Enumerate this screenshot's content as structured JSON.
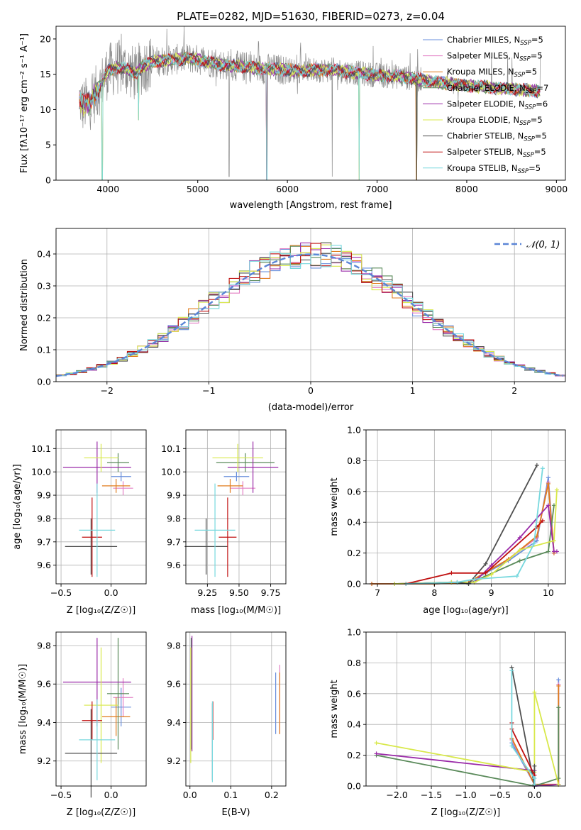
{
  "colors": {
    "Chabrier MILES": "#6a8fdc",
    "Salpeter MILES": "#e37fc4",
    "Kroupa MILES": "#e07b1c",
    "Chabrier ELODIE": "#5a8a5a",
    "Salpeter ELODIE": "#9a2aa8",
    "Kroupa ELODIE": "#d8e84a",
    "Chabrier STELIB": "#4f4f4f",
    "Salpeter STELIB": "#c01010",
    "Kroupa STELIB": "#78d8de",
    "data": "#8a8a8a",
    "gaussian": "#5b85d6",
    "grid": "#b0b0b0"
  },
  "chart_data": [
    {
      "id": "spectrum",
      "type": "line",
      "title": "PLATE=0282, MJD=51630, FIBERID=0273, z=0.04",
      "xlabel": "wavelength [Angstrom, rest frame]",
      "ylabel": "Flux [fλ10⁻¹⁷ erg cm⁻² s⁻¹ A⁻¹]",
      "xlim": [
        3420,
        9100
      ],
      "ylim": [
        0,
        21.8
      ],
      "xticks": [
        4000,
        5000,
        6000,
        7000,
        8000,
        9000
      ],
      "yticks": [
        0,
        5,
        10,
        15,
        20
      ],
      "grid": false,
      "legend_position": "top-right",
      "legend": [
        {
          "model": "Chabrier MILES",
          "label": "Chabrier MILES, N",
          "sub": "SSP",
          "eq": "=5"
        },
        {
          "model": "Salpeter MILES",
          "label": "Salpeter MILES, N",
          "sub": "SSP",
          "eq": "=5"
        },
        {
          "model": "Kroupa MILES",
          "label": "Kroupa MILES, N",
          "sub": "SSP",
          "eq": "=5"
        },
        {
          "model": "Chabrier ELODIE",
          "label": "Chabrier ELODIE, N",
          "sub": "SSP",
          "eq": "=7"
        },
        {
          "model": "Salpeter ELODIE",
          "label": "Salpeter ELODIE, N",
          "sub": "SSP",
          "eq": "=6"
        },
        {
          "model": "Kroupa ELODIE",
          "label": "Kroupa ELODIE, N",
          "sub": "SSP",
          "eq": "=5"
        },
        {
          "model": "Chabrier STELIB",
          "label": "Chabrier STELIB, N",
          "sub": "SSP",
          "eq": "=5"
        },
        {
          "model": "Salpeter STELIB",
          "label": "Salpeter STELIB, N",
          "sub": "SSP",
          "eq": "=5"
        },
        {
          "model": "Kroupa STELIB",
          "label": "Kroupa STELIB, N",
          "sub": "SSP",
          "eq": "=5"
        }
      ],
      "continuum": {
        "x": [
          3680,
          3720,
          3800,
          3900,
          4000,
          4100,
          4200,
          4300,
          4400,
          4500,
          4700,
          4900,
          5100,
          5300,
          5500,
          5700,
          5900,
          6100,
          6300,
          6500,
          6700,
          6900,
          7100,
          7300,
          7450,
          7600,
          7800,
          8000,
          8200,
          8400,
          8600,
          8820
        ],
        "y": [
          11.5,
          10.5,
          11.0,
          13.0,
          15.5,
          16.0,
          15.8,
          15.0,
          16.2,
          16.8,
          17.0,
          17.3,
          16.8,
          16.3,
          16.1,
          15.8,
          15.7,
          15.5,
          15.6,
          15.6,
          15.3,
          15.0,
          14.8,
          14.6,
          14.3,
          14.0,
          13.7,
          13.4,
          13.2,
          13.0,
          12.8,
          12.6
        ]
      },
      "data_end_x": 8820,
      "model_sharp_features": [
        {
          "x": 3935,
          "y": 0
        },
        {
          "x": 4340,
          "y": 8.5
        },
        {
          "x": 5770,
          "y": 0
        },
        {
          "x": 6800,
          "y": 0
        },
        {
          "x": 7440,
          "y": 0
        }
      ]
    },
    {
      "id": "residuals",
      "type": "step-histogram",
      "xlabel": "(data-model)/error",
      "ylabel": "Normed distribution",
      "xlim": [
        -2.5,
        2.5
      ],
      "ylim": [
        0,
        0.48
      ],
      "xticks": [
        -2,
        -1,
        0,
        1,
        2
      ],
      "yticks": [
        0.0,
        0.1,
        0.2,
        0.3,
        0.4
      ],
      "grid": true,
      "legend": [
        {
          "label": "𝒩(0, 1)"
        }
      ],
      "bin_width": 0.1,
      "gaussian": {
        "mu": 0,
        "sigma": 1
      }
    },
    {
      "id": "z-vs-age",
      "type": "errorbar",
      "xlabel": "Z [log₁₀(Z/Z☉)]",
      "ylabel": "age  [log₁₀(age/yr)]",
      "xlim": [
        -0.55,
        0.35
      ],
      "ylim": [
        9.52,
        10.18
      ],
      "xticks": [
        -0.5,
        0.0
      ],
      "yticks": [
        9.6,
        9.7,
        9.8,
        9.9,
        10.0,
        10.1
      ],
      "grid": true,
      "points": [
        {
          "model": "Chabrier MILES",
          "x": 0.1,
          "xerr": 0.1,
          "y": 9.98,
          "yerr": 0.02
        },
        {
          "model": "Salpeter MILES",
          "x": 0.12,
          "xerr": 0.1,
          "y": 9.93,
          "yerr": 0.03
        },
        {
          "model": "Kroupa MILES",
          "x": 0.05,
          "xerr": 0.14,
          "y": 9.94,
          "yerr": 0.03
        },
        {
          "model": "Chabrier ELODIE",
          "x": 0.07,
          "xerr": 0.11,
          "y": 10.04,
          "yerr": 0.04
        },
        {
          "model": "Salpeter ELODIE",
          "x": -0.14,
          "xerr": 0.34,
          "y": 10.02,
          "yerr": 0.11
        },
        {
          "model": "Kroupa ELODIE",
          "x": -0.1,
          "xerr": 0.17,
          "y": 10.06,
          "yerr": 0.06
        },
        {
          "model": "Chabrier STELIB",
          "x": -0.2,
          "xerr": 0.26,
          "y": 9.68,
          "yerr": 0.12
        },
        {
          "model": "Salpeter STELIB",
          "x": -0.19,
          "xerr": 0.1,
          "y": 9.72,
          "yerr": 0.17
        },
        {
          "model": "Kroupa STELIB",
          "x": -0.14,
          "xerr": 0.18,
          "y": 9.75,
          "yerr": 0.2
        }
      ]
    },
    {
      "id": "mass-vs-age",
      "type": "errorbar",
      "xlabel": "mass [log₁₀(M/M☉)]",
      "ylabel": "",
      "xlim": [
        9.08,
        9.87
      ],
      "ylim": [
        9.52,
        10.18
      ],
      "xticks": [
        9.25,
        9.5,
        9.75
      ],
      "yticks": [
        9.6,
        9.7,
        9.8,
        9.9,
        10.0,
        10.1
      ],
      "grid": true,
      "points": [
        {
          "model": "Chabrier MILES",
          "x": 9.48,
          "xerr": 0.1,
          "y": 9.98,
          "yerr": 0.02
        },
        {
          "model": "Salpeter MILES",
          "x": 9.53,
          "xerr": 0.1,
          "y": 9.93,
          "yerr": 0.03
        },
        {
          "model": "Kroupa MILES",
          "x": 9.43,
          "xerr": 0.1,
          "y": 9.94,
          "yerr": 0.03
        },
        {
          "model": "Chabrier ELODIE",
          "x": 9.55,
          "xerr": 0.23,
          "y": 10.04,
          "yerr": 0.04
        },
        {
          "model": "Salpeter ELODIE",
          "x": 9.61,
          "xerr": 0.2,
          "y": 10.02,
          "yerr": 0.11
        },
        {
          "model": "Kroupa ELODIE",
          "x": 9.49,
          "xerr": 0.2,
          "y": 10.06,
          "yerr": 0.06
        },
        {
          "model": "Chabrier STELIB",
          "x": 9.24,
          "xerr": 0.17,
          "y": 9.68,
          "yerr": 0.12
        },
        {
          "model": "Salpeter STELIB",
          "x": 9.41,
          "xerr": 0.07,
          "y": 9.72,
          "yerr": 0.17
        },
        {
          "model": "Kroupa STELIB",
          "x": 9.31,
          "xerr": 0.16,
          "y": 9.75,
          "yerr": 0.2
        }
      ]
    },
    {
      "id": "age-vs-weight",
      "type": "line",
      "xlabel": "age  [log₁₀(age/yr)]",
      "ylabel": "mass weight",
      "xlim": [
        6.8,
        10.3
      ],
      "ylim": [
        0,
        1.0
      ],
      "xticks": [
        7,
        8,
        9,
        10
      ],
      "yticks": [
        0.0,
        0.2,
        0.4,
        0.6,
        0.8,
        1.0
      ],
      "grid": true,
      "series": [
        {
          "model": "Chabrier MILES",
          "x": [
            6.9,
            8.0,
            8.6,
            9.3,
            9.8,
            10.0,
            10.1
          ],
          "y": [
            0.0,
            0.0,
            0.01,
            0.15,
            0.28,
            0.69,
            0.2
          ]
        },
        {
          "model": "Salpeter MILES",
          "x": [
            6.9,
            8.0,
            8.6,
            9.3,
            9.8,
            10.0,
            10.1
          ],
          "y": [
            0.0,
            0.0,
            0.01,
            0.16,
            0.3,
            0.66,
            0.2
          ]
        },
        {
          "model": "Kroupa MILES",
          "x": [
            6.9,
            8.0,
            8.6,
            9.3,
            9.8,
            10.0,
            10.1
          ],
          "y": [
            0.0,
            0.0,
            0.01,
            0.16,
            0.31,
            0.65,
            0.2
          ]
        },
        {
          "model": "Chabrier ELODIE",
          "x": [
            7.3,
            8.3,
            8.6,
            8.9,
            9.5,
            10.0,
            10.1
          ],
          "y": [
            0.0,
            0.01,
            0.0,
            0.05,
            0.15,
            0.21,
            0.51
          ]
        },
        {
          "model": "Salpeter ELODIE",
          "x": [
            7.3,
            8.3,
            8.7,
            9.0,
            9.5,
            10.0,
            10.1,
            10.15
          ],
          "y": [
            0.0,
            0.01,
            0.01,
            0.12,
            0.3,
            0.51,
            0.21,
            0.21
          ]
        },
        {
          "model": "Kroupa ELODIE",
          "x": [
            7.3,
            8.3,
            8.7,
            9.0,
            9.5,
            10.1,
            10.15
          ],
          "y": [
            0.0,
            0.01,
            0.01,
            0.06,
            0.22,
            0.28,
            0.61
          ]
        },
        {
          "model": "Chabrier STELIB",
          "x": [
            7.5,
            8.4,
            8.6,
            8.9,
            9.8
          ],
          "y": [
            0.0,
            0.01,
            0.0,
            0.13,
            0.77
          ]
        },
        {
          "model": "Salpeter STELIB",
          "x": [
            7.5,
            8.3,
            8.9,
            9.8,
            9.9
          ],
          "y": [
            0.0,
            0.07,
            0.07,
            0.37,
            0.41
          ]
        },
        {
          "model": "Kroupa STELIB",
          "x": [
            7.5,
            8.4,
            8.7,
            9.45,
            9.75,
            9.9
          ],
          "y": [
            0.0,
            0.01,
            0.03,
            0.05,
            0.26,
            0.75
          ]
        }
      ]
    },
    {
      "id": "z-vs-mass",
      "type": "errorbar",
      "xlabel": "Z [log₁₀(Z/Z☉)]",
      "ylabel": "mass [log₁₀(M/M☉)]",
      "xlim": [
        -0.55,
        0.35
      ],
      "ylim": [
        9.07,
        9.87
      ],
      "xticks": [
        -0.5,
        0.0
      ],
      "yticks": [
        9.2,
        9.4,
        9.6,
        9.8
      ],
      "grid": true,
      "points": [
        {
          "model": "Chabrier MILES",
          "x": 0.1,
          "xerr": 0.1,
          "y": 9.48,
          "yerr": 0.1
        },
        {
          "model": "Salpeter MILES",
          "x": 0.12,
          "xerr": 0.1,
          "y": 9.53,
          "yerr": 0.1
        },
        {
          "model": "Kroupa MILES",
          "x": 0.05,
          "xerr": 0.14,
          "y": 9.43,
          "yerr": 0.1
        },
        {
          "model": "Chabrier ELODIE",
          "x": 0.07,
          "xerr": 0.11,
          "y": 9.55,
          "yerr": 0.29
        },
        {
          "model": "Salpeter ELODIE",
          "x": -0.14,
          "xerr": 0.34,
          "y": 9.61,
          "yerr": 0.23
        },
        {
          "model": "Kroupa ELODIE",
          "x": -0.1,
          "xerr": 0.17,
          "y": 9.49,
          "yerr": 0.3
        },
        {
          "model": "Chabrier STELIB",
          "x": -0.2,
          "xerr": 0.26,
          "y": 9.24,
          "yerr": 0.23
        },
        {
          "model": "Salpeter STELIB",
          "x": -0.19,
          "xerr": 0.1,
          "y": 9.41,
          "yerr": 0.1
        },
        {
          "model": "Kroupa STELIB",
          "x": -0.14,
          "xerr": 0.18,
          "y": 9.31,
          "yerr": 0.21
        }
      ]
    },
    {
      "id": "ebv-vs-mass",
      "type": "errorbar",
      "xlabel": "E(B-V)",
      "ylabel": "",
      "xlim": [
        -0.01,
        0.235
      ],
      "ylim": [
        9.07,
        9.87
      ],
      "xticks": [
        0.0,
        0.1,
        0.2
      ],
      "yticks": [
        9.2,
        9.4,
        9.6,
        9.8
      ],
      "grid": true,
      "points": [
        {
          "model": "Chabrier MILES",
          "x": 0.21,
          "xerr": 0,
          "y": 9.5,
          "yerr": 0.16
        },
        {
          "model": "Salpeter MILES",
          "x": 0.22,
          "xerr": 0,
          "y": 9.52,
          "yerr": 0.18
        },
        {
          "model": "Kroupa MILES",
          "x": 0.22,
          "xerr": 0,
          "y": 9.5,
          "yerr": 0.16
        },
        {
          "model": "Chabrier ELODIE",
          "x": 0.003,
          "xerr": 0,
          "y": 9.55,
          "yerr": 0.29
        },
        {
          "model": "Salpeter ELODIE",
          "x": 0.005,
          "xerr": 0,
          "y": 9.55,
          "yerr": 0.3
        },
        {
          "model": "Kroupa ELODIE",
          "x": 0.002,
          "xerr": 0,
          "y": 9.49,
          "yerr": 0.3
        },
        {
          "model": "Chabrier STELIB",
          "x": 0.055,
          "xerr": 0,
          "y": 9.3,
          "yerr": 0.2
        },
        {
          "model": "Salpeter STELIB",
          "x": 0.056,
          "xerr": 0,
          "y": 9.41,
          "yerr": 0.1
        },
        {
          "model": "Kroupa STELIB",
          "x": 0.055,
          "xerr": 0,
          "y": 9.3,
          "yerr": 0.21
        }
      ]
    },
    {
      "id": "z-vs-weight",
      "type": "line",
      "xlabel": "Z [log₁₀(Z/Z☉)]",
      "ylabel": "mass weight",
      "xlim": [
        -2.45,
        0.45
      ],
      "ylim": [
        0,
        1.0
      ],
      "xticks": [
        -2.0,
        -1.5,
        -1.0,
        -0.5,
        0.0
      ],
      "yticks": [
        0.0,
        0.2,
        0.4,
        0.6,
        0.8,
        1.0
      ],
      "grid": true,
      "series": [
        {
          "model": "Chabrier MILES",
          "x": [
            -0.33,
            0.0,
            0.0,
            0.35,
            0.35
          ],
          "y": [
            0.28,
            0.01,
            0.0,
            0.01,
            0.69
          ]
        },
        {
          "model": "Salpeter MILES",
          "x": [
            -0.33,
            0.0,
            0.35,
            0.35
          ],
          "y": [
            0.3,
            0.01,
            0.01,
            0.66
          ]
        },
        {
          "model": "Kroupa MILES",
          "x": [
            -0.33,
            0.0,
            0.35,
            0.35
          ],
          "y": [
            0.31,
            0.01,
            0.01,
            0.65
          ]
        },
        {
          "model": "Chabrier ELODIE",
          "x": [
            -2.3,
            0.0,
            0.35,
            0.35
          ],
          "y": [
            0.2,
            0.0,
            0.05,
            0.51
          ]
        },
        {
          "model": "Salpeter ELODIE",
          "x": [
            -2.3,
            0.0,
            0.0,
            0.35
          ],
          "y": [
            0.21,
            0.1,
            0.0,
            0.01
          ]
        },
        {
          "model": "Kroupa ELODIE",
          "x": [
            -2.3,
            0.0,
            0.0,
            0.35
          ],
          "y": [
            0.28,
            0.09,
            0.61,
            0.01
          ]
        },
        {
          "model": "Chabrier STELIB",
          "x": [
            -0.33,
            0.0,
            0.0
          ],
          "y": [
            0.77,
            0.0,
            0.13
          ]
        },
        {
          "model": "Salpeter STELIB",
          "x": [
            -0.33,
            -0.33,
            0.0
          ],
          "y": [
            0.41,
            0.37,
            0.07
          ]
        },
        {
          "model": "Kroupa STELIB",
          "x": [
            -0.33,
            -0.33,
            0.0,
            0.0
          ],
          "y": [
            0.75,
            0.26,
            0.05,
            0.01
          ]
        }
      ]
    }
  ]
}
